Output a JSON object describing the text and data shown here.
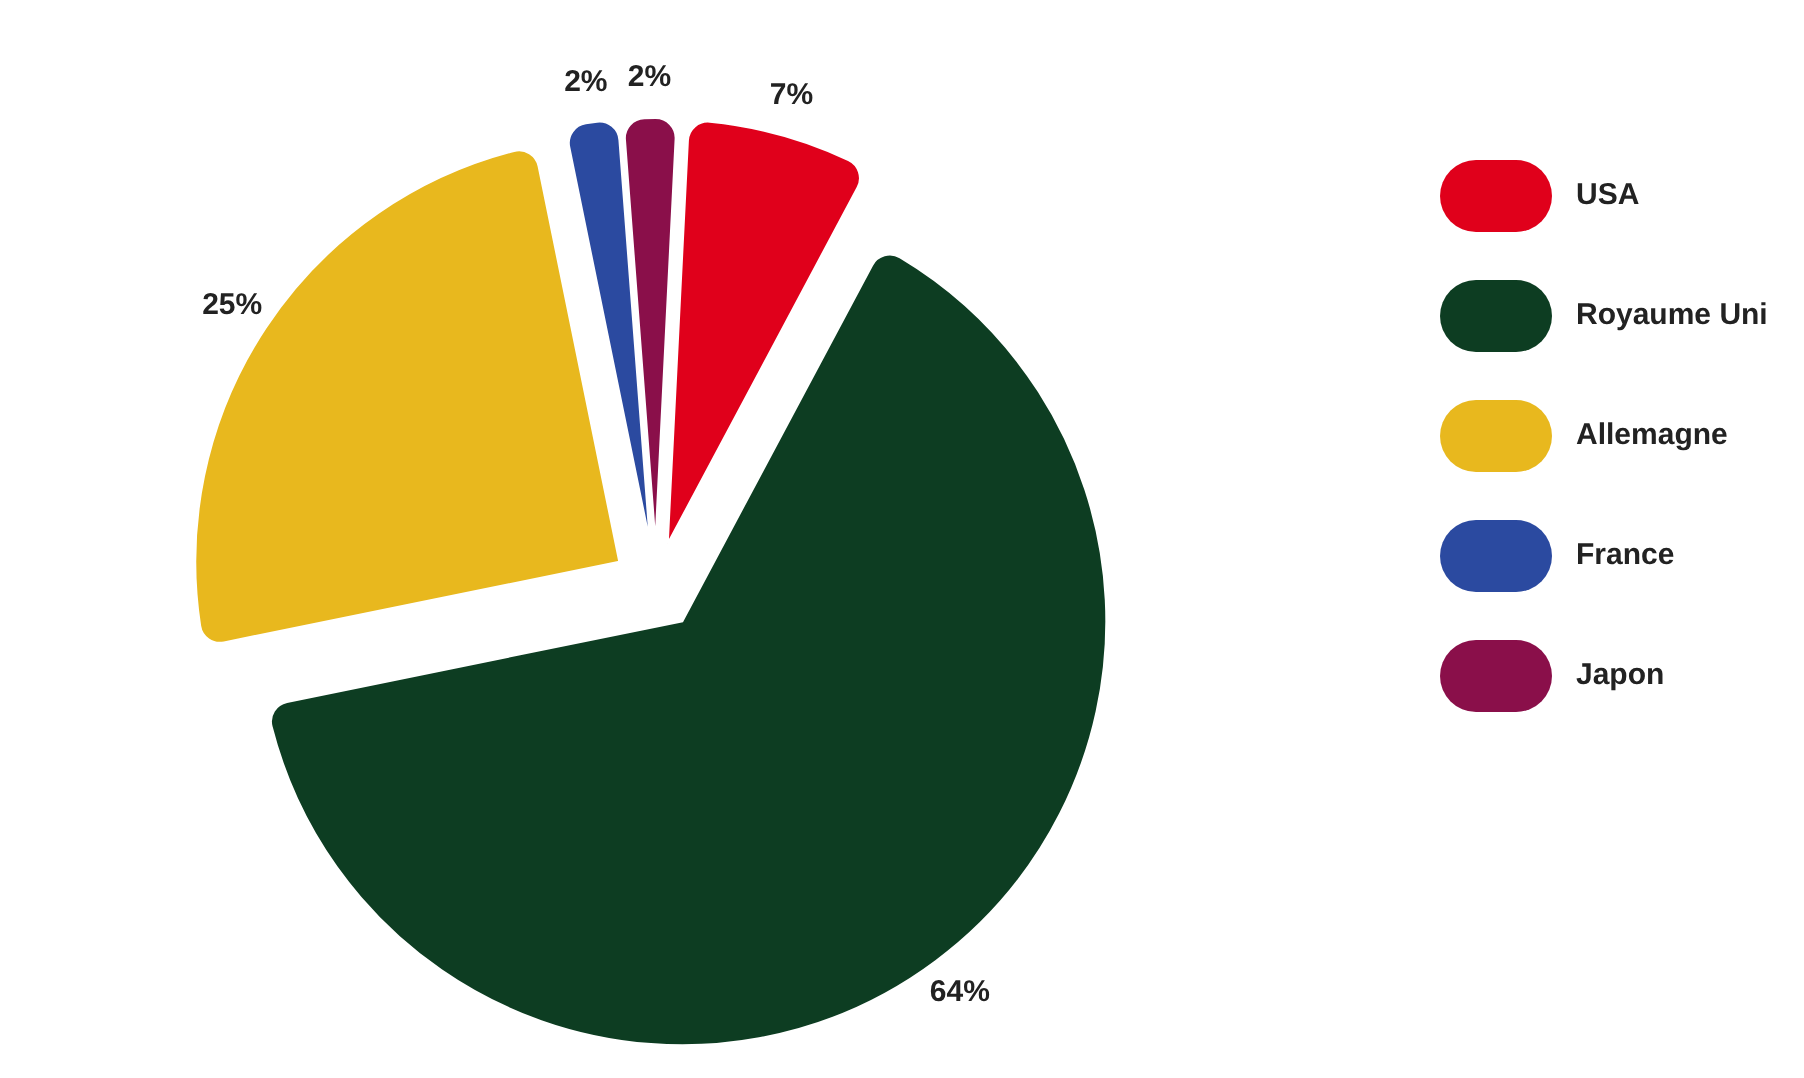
{
  "chart_data": {
    "type": "pie",
    "categories": [
      "USA",
      "Royaume Uni",
      "Allemagne",
      "France",
      "Japon"
    ],
    "values": [
      7,
      64,
      25,
      2,
      2
    ],
    "colors": [
      "#e0001b",
      "#0d3d22",
      "#e8b81e",
      "#2b4aa0",
      "#8a0f4a"
    ],
    "value_labels": [
      "7%",
      "64%",
      "25%",
      "2%",
      "2%"
    ],
    "legend": "right"
  }
}
